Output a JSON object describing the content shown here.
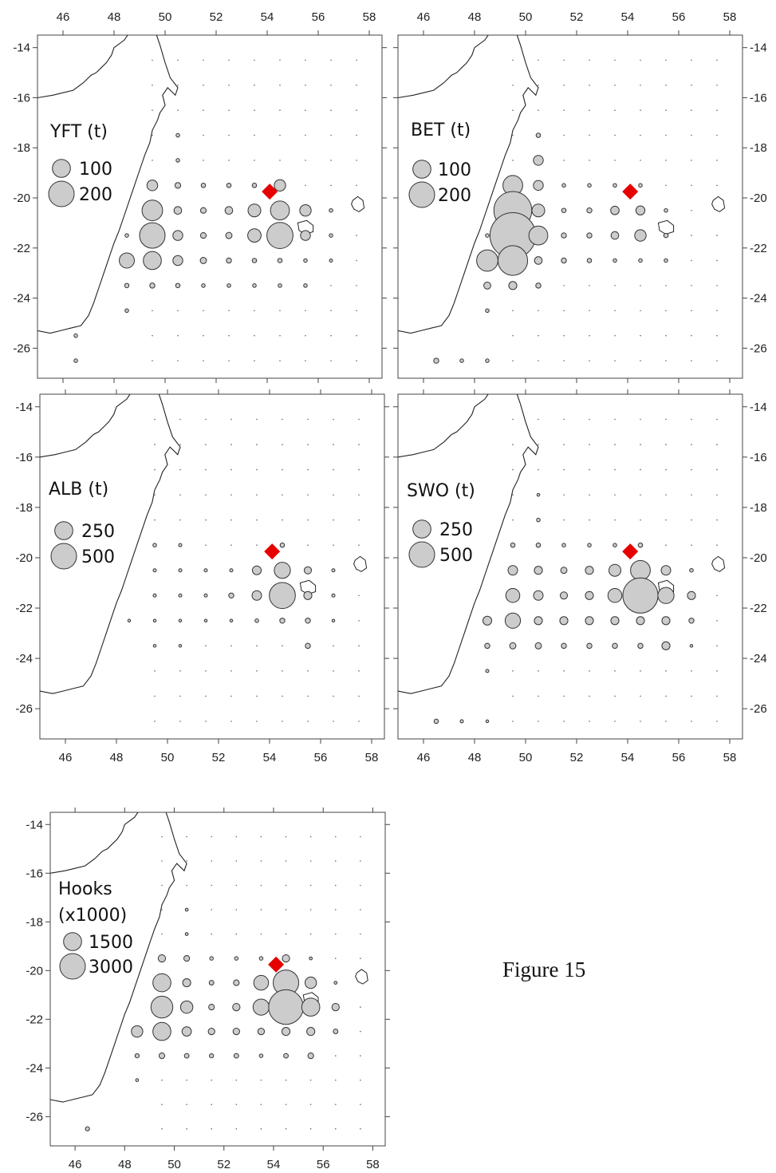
{
  "figure_label": "Figure 15",
  "colors": {
    "bubble_fill": "#cccccc",
    "bubble_stroke": "#333333",
    "marker": "#e60000",
    "coast": "#222222"
  },
  "axes": {
    "lon_ticks": [
      "46",
      "48",
      "50",
      "52",
      "54",
      "56",
      "58"
    ],
    "lat_ticks": [
      "-14",
      "-16",
      "-18",
      "-20",
      "-22",
      "-24",
      "-26"
    ],
    "xlim": [
      45,
      58.5
    ],
    "ylim": [
      -27.2,
      -13.5
    ]
  },
  "marker": {
    "lon": 54.1,
    "lat": -19.75,
    "shape": "red-diamond"
  },
  "chart_data": [
    {
      "type": "scatter",
      "title": "YFT (t)",
      "title_lines": [
        "YFT (t)"
      ],
      "legend": [
        {
          "label": "100",
          "value": 100
        },
        {
          "label": "200",
          "value": 200
        }
      ],
      "points": [
        [
          49.5,
          -19.5,
          35
        ],
        [
          50.5,
          -19.5,
          10
        ],
        [
          51.5,
          -19.5,
          6
        ],
        [
          52.5,
          -19.5,
          6
        ],
        [
          53.5,
          -19.5,
          6
        ],
        [
          54.5,
          -19.5,
          40
        ],
        [
          49.5,
          -20.5,
          130
        ],
        [
          50.5,
          -20.5,
          18
        ],
        [
          51.5,
          -20.5,
          10
        ],
        [
          52.5,
          -20.5,
          18
        ],
        [
          53.5,
          -20.5,
          50
        ],
        [
          54.5,
          -20.5,
          110
        ],
        [
          55.5,
          -20.5,
          40
        ],
        [
          56.5,
          -20.5,
          4
        ],
        [
          48.5,
          -21.5,
          4
        ],
        [
          49.5,
          -21.5,
          200
        ],
        [
          50.5,
          -21.5,
          30
        ],
        [
          51.5,
          -21.5,
          10
        ],
        [
          52.5,
          -21.5,
          12
        ],
        [
          53.5,
          -21.5,
          55
        ],
        [
          54.5,
          -21.5,
          210
        ],
        [
          55.5,
          -21.5,
          30
        ],
        [
          56.5,
          -21.5,
          4
        ],
        [
          48.5,
          -22.5,
          70
        ],
        [
          49.5,
          -22.5,
          100
        ],
        [
          50.5,
          -22.5,
          30
        ],
        [
          51.5,
          -22.5,
          12
        ],
        [
          52.5,
          -22.5,
          8
        ],
        [
          53.5,
          -22.5,
          6
        ],
        [
          54.5,
          -22.5,
          6
        ],
        [
          55.5,
          -22.5,
          4
        ],
        [
          56.5,
          -22.5,
          3
        ],
        [
          48.5,
          -23.5,
          6
        ],
        [
          49.5,
          -23.5,
          8
        ],
        [
          50.5,
          -23.5,
          6
        ],
        [
          51.5,
          -23.5,
          4
        ],
        [
          52.5,
          -23.5,
          4
        ],
        [
          53.5,
          -23.5,
          4
        ],
        [
          54.5,
          -23.5,
          4
        ],
        [
          55.5,
          -23.5,
          4
        ],
        [
          48.5,
          -24.5,
          4
        ],
        [
          46.5,
          -25.5,
          4
        ],
        [
          46.5,
          -26.5,
          4
        ],
        [
          50.5,
          -17.5,
          4
        ],
        [
          50.5,
          -18.5,
          4
        ]
      ]
    },
    {
      "type": "scatter",
      "title": "BET (t)",
      "title_lines": [
        "BET (t)"
      ],
      "legend": [
        {
          "label": "100",
          "value": 100
        },
        {
          "label": "200",
          "value": 200
        }
      ],
      "points": [
        [
          50.5,
          -17.5,
          6
        ],
        [
          50.5,
          -18.5,
          30
        ],
        [
          49.5,
          -19.5,
          120
        ],
        [
          50.5,
          -19.5,
          30
        ],
        [
          51.5,
          -19.5,
          4
        ],
        [
          52.5,
          -19.5,
          4
        ],
        [
          53.5,
          -19.5,
          4
        ],
        [
          54.5,
          -19.5,
          4
        ],
        [
          49.5,
          -20.5,
          440
        ],
        [
          50.5,
          -20.5,
          50
        ],
        [
          51.5,
          -20.5,
          6
        ],
        [
          52.5,
          -20.5,
          8
        ],
        [
          53.5,
          -20.5,
          22
        ],
        [
          54.5,
          -20.5,
          25
        ],
        [
          55.5,
          -20.5,
          4
        ],
        [
          48.5,
          -21.5,
          4
        ],
        [
          49.5,
          -21.5,
          640
        ],
        [
          50.5,
          -21.5,
          110
        ],
        [
          51.5,
          -21.5,
          8
        ],
        [
          52.5,
          -21.5,
          8
        ],
        [
          53.5,
          -21.5,
          18
        ],
        [
          54.5,
          -21.5,
          40
        ],
        [
          55.5,
          -21.5,
          6
        ],
        [
          48.5,
          -22.5,
          140
        ],
        [
          49.5,
          -22.5,
          270
        ],
        [
          50.5,
          -22.5,
          18
        ],
        [
          51.5,
          -22.5,
          8
        ],
        [
          52.5,
          -22.5,
          6
        ],
        [
          53.5,
          -22.5,
          4
        ],
        [
          54.5,
          -22.5,
          4
        ],
        [
          55.5,
          -22.5,
          4
        ],
        [
          48.5,
          -23.5,
          15
        ],
        [
          49.5,
          -23.5,
          20
        ],
        [
          50.5,
          -23.5,
          8
        ],
        [
          48.5,
          -24.5,
          4
        ],
        [
          46.5,
          -26.5,
          8
        ],
        [
          47.5,
          -26.5,
          4
        ],
        [
          48.5,
          -26.5,
          4
        ]
      ]
    },
    {
      "type": "scatter",
      "title": "ALB (t)",
      "title_lines": [
        "ALB (t)"
      ],
      "legend": [
        {
          "label": "250",
          "value": 250
        },
        {
          "label": "500",
          "value": 500
        }
      ],
      "points": [
        [
          49.5,
          -19.5,
          10
        ],
        [
          50.5,
          -19.5,
          8
        ],
        [
          54.5,
          -19.5,
          15
        ],
        [
          49.5,
          -20.5,
          8
        ],
        [
          50.5,
          -20.5,
          8
        ],
        [
          51.5,
          -20.5,
          8
        ],
        [
          52.5,
          -20.5,
          8
        ],
        [
          53.5,
          -20.5,
          60
        ],
        [
          54.5,
          -20.5,
          200
        ],
        [
          55.5,
          -20.5,
          40
        ],
        [
          56.5,
          -20.5,
          8
        ],
        [
          49.5,
          -21.5,
          8
        ],
        [
          50.5,
          -21.5,
          8
        ],
        [
          51.5,
          -21.5,
          8
        ],
        [
          52.5,
          -21.5,
          20
        ],
        [
          53.5,
          -21.5,
          70
        ],
        [
          54.5,
          -21.5,
          520
        ],
        [
          55.5,
          -21.5,
          50
        ],
        [
          56.5,
          -21.5,
          8
        ],
        [
          48.5,
          -22.5,
          6
        ],
        [
          49.5,
          -22.5,
          6
        ],
        [
          50.5,
          -22.5,
          6
        ],
        [
          51.5,
          -22.5,
          6
        ],
        [
          52.5,
          -22.5,
          6
        ],
        [
          53.5,
          -22.5,
          10
        ],
        [
          54.5,
          -22.5,
          20
        ],
        [
          55.5,
          -22.5,
          20
        ],
        [
          56.5,
          -22.5,
          6
        ],
        [
          49.5,
          -23.5,
          6
        ],
        [
          50.5,
          -23.5,
          6
        ],
        [
          55.5,
          -23.5,
          20
        ]
      ]
    },
    {
      "type": "scatter",
      "title": "SWO (t)",
      "title_lines": [
        "SWO (t)"
      ],
      "legend": [
        {
          "label": "250",
          "value": 250
        },
        {
          "label": "500",
          "value": 500
        }
      ],
      "points": [
        [
          50.5,
          -17.5,
          6
        ],
        [
          50.5,
          -18.5,
          10
        ],
        [
          49.5,
          -19.5,
          15
        ],
        [
          50.5,
          -19.5,
          15
        ],
        [
          51.5,
          -19.5,
          10
        ],
        [
          52.5,
          -19.5,
          10
        ],
        [
          53.5,
          -19.5,
          10
        ],
        [
          54.5,
          -19.5,
          15
        ],
        [
          49.5,
          -20.5,
          70
        ],
        [
          50.5,
          -20.5,
          50
        ],
        [
          51.5,
          -20.5,
          30
        ],
        [
          52.5,
          -20.5,
          50
        ],
        [
          53.5,
          -20.5,
          110
        ],
        [
          54.5,
          -20.5,
          300
        ],
        [
          55.5,
          -20.5,
          70
        ],
        [
          56.5,
          -20.5,
          10
        ],
        [
          49.5,
          -21.5,
          150
        ],
        [
          50.5,
          -21.5,
          70
        ],
        [
          51.5,
          -21.5,
          40
        ],
        [
          52.5,
          -21.5,
          50
        ],
        [
          53.5,
          -21.5,
          150
        ],
        [
          54.5,
          -21.5,
          950
        ],
        [
          55.5,
          -21.5,
          200
        ],
        [
          56.5,
          -21.5,
          50
        ],
        [
          48.5,
          -22.5,
          60
        ],
        [
          49.5,
          -22.5,
          180
        ],
        [
          50.5,
          -22.5,
          50
        ],
        [
          51.5,
          -22.5,
          50
        ],
        [
          52.5,
          -22.5,
          50
        ],
        [
          53.5,
          -22.5,
          50
        ],
        [
          54.5,
          -22.5,
          50
        ],
        [
          55.5,
          -22.5,
          50
        ],
        [
          56.5,
          -22.5,
          20
        ],
        [
          48.5,
          -23.5,
          20
        ],
        [
          49.5,
          -23.5,
          30
        ],
        [
          50.5,
          -23.5,
          30
        ],
        [
          51.5,
          -23.5,
          20
        ],
        [
          52.5,
          -23.5,
          20
        ],
        [
          53.5,
          -23.5,
          20
        ],
        [
          54.5,
          -23.5,
          20
        ],
        [
          55.5,
          -23.5,
          50
        ],
        [
          56.5,
          -23.5,
          6
        ],
        [
          48.5,
          -24.5,
          8
        ],
        [
          46.5,
          -26.5,
          15
        ],
        [
          47.5,
          -26.5,
          8
        ],
        [
          48.5,
          -26.5,
          6
        ]
      ]
    },
    {
      "type": "scatter",
      "title": "Hooks (x1000)",
      "title_lines": [
        "Hooks",
        "(x1000)"
      ],
      "legend": [
        {
          "label": "1500",
          "value": 1500
        },
        {
          "label": "3000",
          "value": 3000
        }
      ],
      "points": [
        [
          50.5,
          -17.5,
          40
        ],
        [
          50.5,
          -18.5,
          40
        ],
        [
          49.5,
          -19.5,
          250
        ],
        [
          50.5,
          -19.5,
          150
        ],
        [
          51.5,
          -19.5,
          60
        ],
        [
          52.5,
          -19.5,
          60
        ],
        [
          53.5,
          -19.5,
          60
        ],
        [
          54.5,
          -19.5,
          250
        ],
        [
          55.5,
          -19.5,
          40
        ],
        [
          49.5,
          -20.5,
          1500
        ],
        [
          50.5,
          -20.5,
          300
        ],
        [
          51.5,
          -20.5,
          100
        ],
        [
          52.5,
          -20.5,
          150
        ],
        [
          53.5,
          -20.5,
          1000
        ],
        [
          54.5,
          -20.5,
          3000
        ],
        [
          55.5,
          -20.5,
          600
        ],
        [
          56.5,
          -20.5,
          40
        ],
        [
          49.5,
          -21.5,
          2200
        ],
        [
          50.5,
          -21.5,
          700
        ],
        [
          51.5,
          -21.5,
          150
        ],
        [
          52.5,
          -21.5,
          250
        ],
        [
          53.5,
          -21.5,
          1200
        ],
        [
          54.5,
          -21.5,
          5500
        ],
        [
          55.5,
          -21.5,
          1500
        ],
        [
          56.5,
          -21.5,
          250
        ],
        [
          48.5,
          -22.5,
          600
        ],
        [
          49.5,
          -22.5,
          1500
        ],
        [
          50.5,
          -22.5,
          400
        ],
        [
          51.5,
          -22.5,
          200
        ],
        [
          52.5,
          -22.5,
          200
        ],
        [
          53.5,
          -22.5,
          200
        ],
        [
          54.5,
          -22.5,
          300
        ],
        [
          55.5,
          -22.5,
          300
        ],
        [
          56.5,
          -22.5,
          100
        ],
        [
          48.5,
          -23.5,
          80
        ],
        [
          49.5,
          -23.5,
          150
        ],
        [
          50.5,
          -23.5,
          100
        ],
        [
          51.5,
          -23.5,
          80
        ],
        [
          52.5,
          -23.5,
          100
        ],
        [
          53.5,
          -23.5,
          60
        ],
        [
          54.5,
          -23.5,
          100
        ],
        [
          55.5,
          -23.5,
          150
        ],
        [
          48.5,
          -24.5,
          40
        ],
        [
          46.5,
          -26.5,
          80
        ]
      ]
    }
  ]
}
